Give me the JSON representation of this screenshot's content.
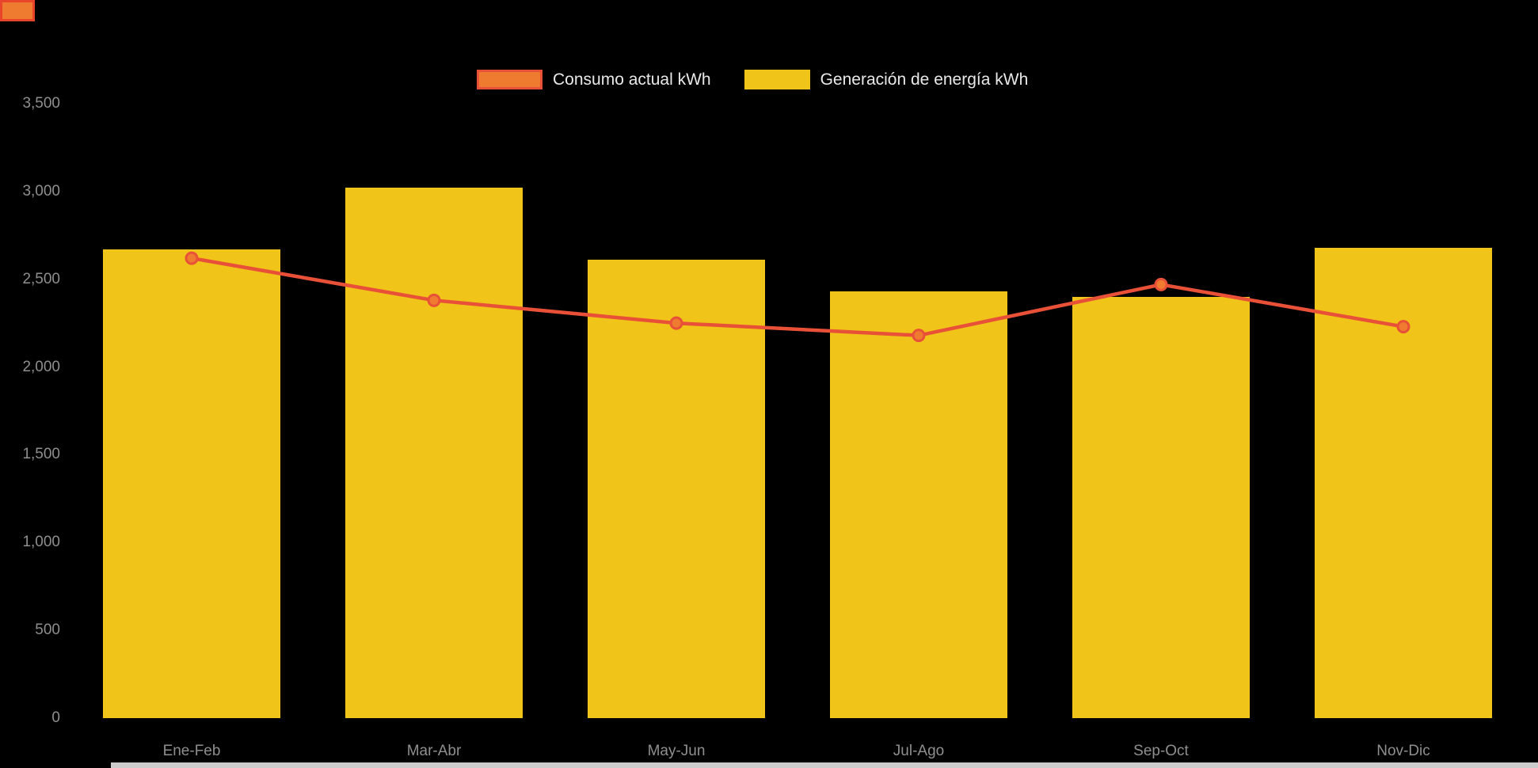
{
  "page": {
    "background": "#000000",
    "corner_accent": {
      "fill": "#ee7b2f",
      "border": "#e8442c"
    },
    "scrollbar_color": "#cccccc"
  },
  "chart_data": {
    "type": "combo-bar-line",
    "title": "",
    "xlabel": "",
    "ylabel": "",
    "categories": [
      "Ene-Feb",
      "Mar-Abr",
      "May-Jun",
      "Jul-Ago",
      "Sep-Oct",
      "Nov-Dic"
    ],
    "series": [
      {
        "name": "Consumo actual kWh",
        "type": "line",
        "values": [
          2620,
          2380,
          2250,
          2180,
          2470,
          2230
        ],
        "color": "#e85138",
        "marker_fill": "#ee7b2f"
      },
      {
        "name": "Generación de energía kWh",
        "type": "bar",
        "values": [
          2670,
          3020,
          2610,
          2430,
          2400,
          2680
        ],
        "color": "#f0c419"
      }
    ],
    "ylim": [
      0,
      3500
    ],
    "yticks": [
      {
        "label": "0",
        "value": 0
      },
      {
        "label": "500",
        "value": 500
      },
      {
        "label": "1,000",
        "value": 1000
      },
      {
        "label": "1,500",
        "value": 1500
      },
      {
        "label": "2,000",
        "value": 2000
      },
      {
        "label": "2,500",
        "value": 2500
      },
      {
        "label": "3,000",
        "value": 3000
      },
      {
        "label": "3,500",
        "value": 3500
      }
    ],
    "grid": false,
    "legend_position": "top",
    "axis_label_color": "#8f8f8f",
    "legend_text_color": "#e9e9e9",
    "background": "#000000"
  }
}
